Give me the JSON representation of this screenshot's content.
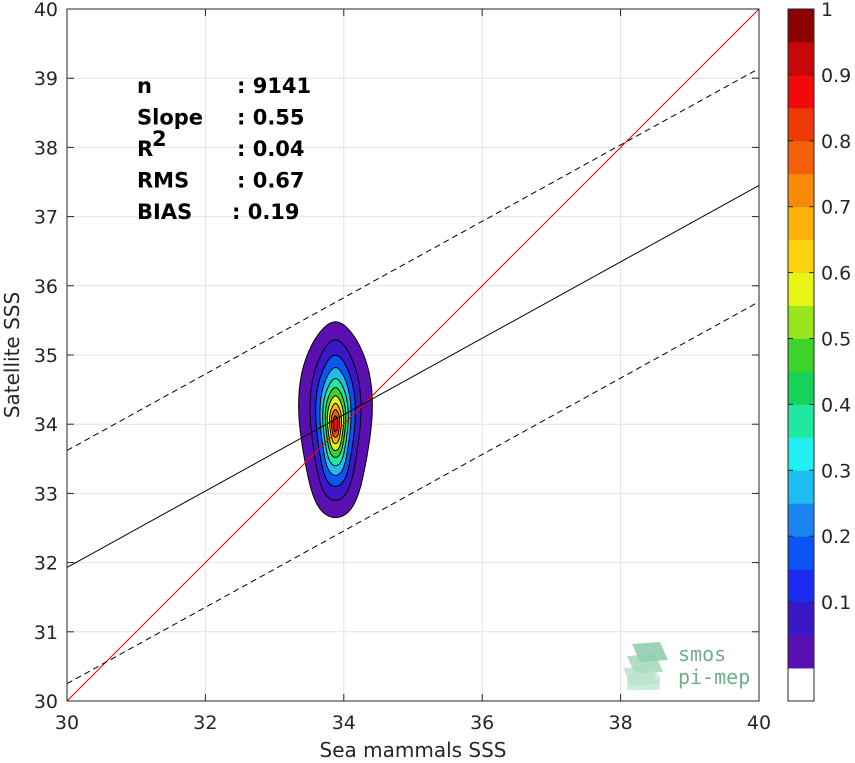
{
  "chart_data": {
    "type": "heatmap",
    "xlabel": "Sea mammals SSS",
    "ylabel": "Satellite SSS",
    "xlim": [
      30,
      40
    ],
    "ylim": [
      30,
      40
    ],
    "xticks": [
      "30",
      "32",
      "34",
      "36",
      "38",
      "40"
    ],
    "yticks": [
      "30",
      "31",
      "32",
      "33",
      "34",
      "35",
      "36",
      "37",
      "38",
      "39",
      "40"
    ],
    "grid": true,
    "stats": [
      {
        "label": "n",
        "value": ": 9141"
      },
      {
        "label": "Slope",
        "value": ": 0.55"
      },
      {
        "label": "R",
        "sup": "2",
        "value": ": 0.04"
      },
      {
        "label": "RMS",
        "value": ": 0.67"
      },
      {
        "label": "BIAS",
        "value": ": 0.19"
      }
    ],
    "lines": {
      "one_to_one": {
        "color": "#ff0000",
        "points": [
          [
            30,
            30
          ],
          [
            40,
            40
          ]
        ]
      },
      "regression": {
        "color": "#000000",
        "points": [
          [
            30,
            31.93
          ],
          [
            40,
            37.45
          ]
        ]
      },
      "upper_bound": {
        "color": "#000000",
        "dashed": true,
        "points": [
          [
            30,
            33.62
          ],
          [
            40,
            39.14
          ]
        ]
      },
      "lower_bound": {
        "color": "#000000",
        "dashed": true,
        "points": [
          [
            30,
            30.25
          ],
          [
            40,
            35.77
          ]
        ]
      }
    },
    "density": {
      "center": [
        33.88,
        34.0
      ],
      "levels": [
        {
          "level": 0.05,
          "rx": 0.52,
          "ry_top": 1.48,
          "ry_bot": 1.35
        },
        {
          "level": 0.1,
          "rx": 0.36,
          "ry_top": 1.22,
          "ry_bot": 1.1
        },
        {
          "level": 0.2,
          "rx": 0.28,
          "ry_top": 1.0,
          "ry_bot": 0.9
        },
        {
          "level": 0.3,
          "rx": 0.22,
          "ry_top": 0.82,
          "ry_bot": 0.74
        },
        {
          "level": 0.4,
          "rx": 0.18,
          "ry_top": 0.66,
          "ry_bot": 0.6
        },
        {
          "level": 0.5,
          "rx": 0.145,
          "ry_top": 0.53,
          "ry_bot": 0.48
        },
        {
          "level": 0.6,
          "rx": 0.115,
          "ry_top": 0.41,
          "ry_bot": 0.38
        },
        {
          "level": 0.7,
          "rx": 0.085,
          "ry_top": 0.3,
          "ry_bot": 0.28
        },
        {
          "level": 0.8,
          "rx": 0.06,
          "ry_top": 0.21,
          "ry_bot": 0.19
        },
        {
          "level": 0.9,
          "rx": 0.035,
          "ry_top": 0.12,
          "ry_bot": 0.11
        }
      ]
    },
    "colorbar": {
      "ticks": [
        "0.1",
        "0.2",
        "0.3",
        "0.4",
        "0.5",
        "0.6",
        "0.7",
        "0.8",
        "0.9",
        "1"
      ],
      "colors": [
        "#ffffff",
        "#5a0fb0",
        "#3a18c8",
        "#1c2bf0",
        "#0a55f5",
        "#1a85f0",
        "#1cbef0",
        "#22f0f0",
        "#20e8a0",
        "#18d25a",
        "#3cd42a",
        "#9ae61c",
        "#e6f515",
        "#fad20e",
        "#fcb00a",
        "#f88a08",
        "#f46008",
        "#ee3a08",
        "#f00a0a",
        "#c80808",
        "#8c0000"
      ]
    }
  },
  "logo": {
    "line1": "smos",
    "line2": "pi-mep"
  }
}
